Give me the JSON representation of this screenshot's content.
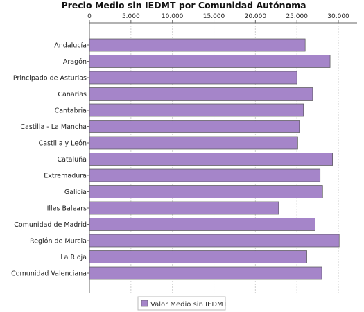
{
  "chart_data": {
    "type": "bar",
    "orientation": "horizontal",
    "title": "Precio Medio sin IEDMT por Comunidad Autónoma",
    "xlabel": "",
    "ylabel": "",
    "xlim": [
      0,
      31000
    ],
    "tick_values": [
      0,
      5000,
      10000,
      15000,
      20000,
      25000,
      30000
    ],
    "tick_labels": [
      "0",
      "5.000",
      "10.000",
      "15.000",
      "20.000",
      "25.000",
      "30.000"
    ],
    "axis_position": "top",
    "grid": true,
    "categories": [
      "Andalucía",
      "Aragón",
      "Principado de Asturias",
      "Canarias",
      "Cantabria",
      "Castilla - La Mancha",
      "Castilla y León",
      "Cataluña",
      "Extremadura",
      "Galicia",
      "Illes Balears",
      "Comunidad de Madrid",
      "Región de Murcia",
      "La Rioja",
      "Comunidad Valenciana"
    ],
    "series": [
      {
        "name": "Valor Medio sin IEDMT",
        "color": "#a585c9",
        "values": [
          26000,
          29000,
          25000,
          26900,
          25800,
          25300,
          25100,
          29300,
          27800,
          28100,
          22800,
          27200,
          30100,
          26200,
          28000
        ]
      }
    ],
    "legend_position": "bottom"
  }
}
